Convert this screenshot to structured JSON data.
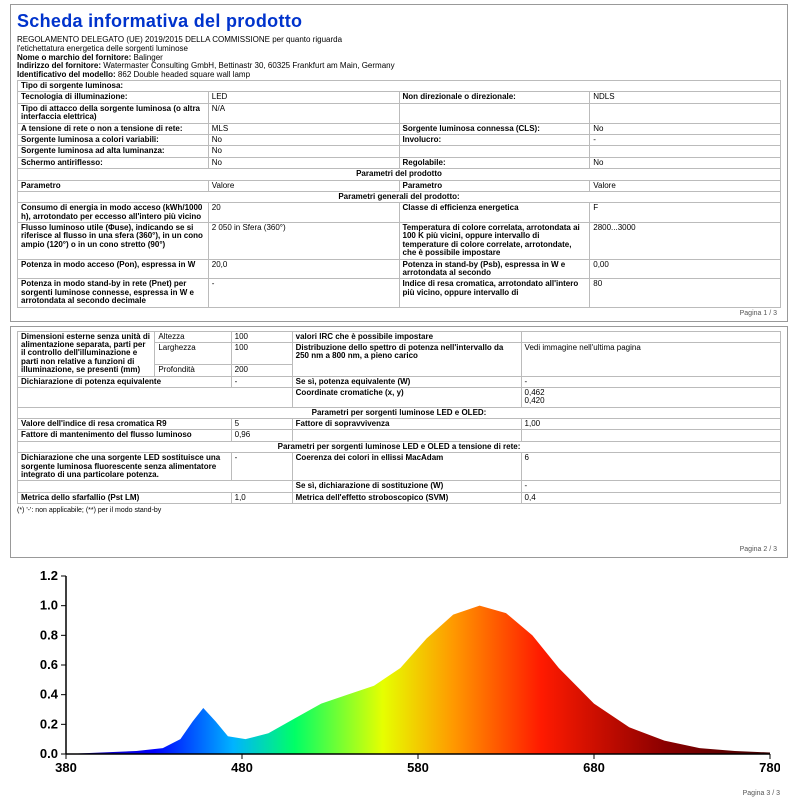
{
  "header": {
    "title": "Scheda informativa del prodotto",
    "reg_line1": "REGOLAMENTO DELEGATO (UE) 2019/2015 DELLA COMMISSIONE per quanto riguarda",
    "reg_line2": "l'etichettatura energetica delle sorgenti luminose",
    "supplier_lbl": "Nome o marchio del fornitore:",
    "supplier_val": "Balinger",
    "addr_lbl": "Indirizzo del fornitore:",
    "addr_val": "Watermaster Consulting GmbH, Bettinastr 30, 60325 Frankfurt am Main, Germany",
    "model_lbl": "Identificativo del modello:",
    "model_val": "862 Double headed square wall lamp"
  },
  "r": {
    "tipo_lbl": "Tipo di sorgente luminosa:",
    "tech_lbl": "Tecnologia di illuminazione:",
    "tech_val": "LED",
    "dir_lbl": "Non direzionale o direzionale:",
    "dir_val": "NDLS",
    "att_lbl": "Tipo di attacco della sorgente luminosa (o altra interfaccia elettrica)",
    "att_val": "N/A",
    "rete_lbl": "A tensione di rete o non a tensione di rete:",
    "rete_val": "MLS",
    "cls_lbl": "Sorgente luminosa connessa (CLS):",
    "cls_val": "No",
    "colori_lbl": "Sorgente luminosa a colori variabili:",
    "colori_val": "No",
    "inv_lbl": "Involucro:",
    "inv_val": "-",
    "alta_lbl": "Sorgente luminosa ad alta luminanza:",
    "alta_val": "No",
    "schermo_lbl": "Schermo antiriflesso:",
    "schermo_val": "No",
    "reg_lbl": "Regolabile:",
    "reg_val": "No",
    "param_sect": "Parametri del prodotto",
    "p_lbl": "Parametro",
    "v_lbl": "Valore",
    "gen_sect": "Parametri generali del prodotto:",
    "cons_lbl": "Consumo di energia in modo acceso (kWh/1000 h), arrotondato per eccesso all'intero più vicino",
    "cons_val": "20",
    "class_lbl": "Classe di efficienza energetica",
    "class_val": "F",
    "flux_lbl": "Flusso luminoso utile (Φuse), indicando se si riferisce al flusso in una sfera (360°), in un cono ampio (120°) o in un cono stretto (90°)",
    "flux_val": "2 050 in Sfera (360°)",
    "temp_lbl": "Temperatura di colore correlata, arrotondata ai 100 K più vicini, oppure intervallo di temperature di colore correlate, arrotondate, che è possibile impostare",
    "temp_val": "2800...3000",
    "pon_lbl": "Potenza in modo acceso (Pon), espressa in W",
    "pon_val": "20,0",
    "psb_lbl": "Potenza in stand-by (Psb), espressa in W e arrotondata al secondo",
    "psb_val": "0,00",
    "psb2_lbl": "Potenza in modo stand-by in rete (Pnet) per sorgenti luminose connesse, espressa in W e arrotondata al secondo decimale",
    "psb2_val": "-",
    "irc_lbl": "Indice di resa cromatica, arrotondato all'intero più vicino, oppure intervallo di",
    "irc_val": "80"
  },
  "p1": "Pagina 1 / 3",
  "r2": {
    "dim_lbl": "Dimensioni esterne senza unità di alimentazione separata, parti per il controllo dell'illuminazione e parti non relative a funzioni di illuminazione, se presenti (mm)",
    "alt_lbl": "Altezza",
    "alt_val": "100",
    "lar_lbl": "Larghezza",
    "lar_val": "100",
    "pro_lbl": "Profondità",
    "pro_val": "200",
    "irc2_lbl": "valori IRC che è possibile impostare",
    "spd_lbl": "Distribuzione dello spettro di potenza nell'intervallo da 250 nm a 800 nm, a pieno carico",
    "spd_val": "Vedi immagine nell'ultima pagina",
    "peq_lbl": "Dichiarazione di potenza equivalente",
    "peq_val": "-",
    "peq2_lbl": "Se sì, potenza equivalente (W)",
    "peq2_val": "-",
    "coord_lbl": "Coordinate cromatiche (x, y)",
    "coord_x": "0,462",
    "coord_y": "0,420",
    "led_sect": "Parametri per sorgenti luminose LED e OLED:",
    "r9_lbl": "Valore dell'indice di resa cromatica R9",
    "r9_val": "5",
    "surv_lbl": "Fattore di sopravvivenza",
    "surv_val": "1,00",
    "fm_lbl": "Fattore di mantenimento del flusso luminoso",
    "fm_val": "0,96",
    "ledrete_sect": "Parametri per sorgenti luminose LED e OLED a tensione di rete:",
    "fluor_lbl": "Dichiarazione che una sorgente LED sostituisce una sorgente luminosa fluorescente senza alimentatore integrato di una particolare potenza.",
    "fluor_val": "-",
    "mac_lbl": "Coerenza dei colori in ellissi MacAdam",
    "mac_val": "6",
    "mac2_lbl": "Se sì, dichiarazione di sostituzione (W)",
    "mac2_val": "-",
    "flick_lbl": "Metrica dello sfarfallio (Pst LM)",
    "flick_val": "1,0",
    "svm_lbl": "Metrica dell'effetto stroboscopico (SVM)",
    "svm_val": "0,4",
    "foot": "(*) '-': non applicabile; (**) per il modo stand-by"
  },
  "p2": "Pagina 2 / 3",
  "spectrum": {
    "xlim": [
      380,
      780
    ],
    "ylim": [
      0,
      1.2
    ],
    "xticks": [
      380,
      480,
      580,
      680,
      780
    ],
    "yticks": [
      0.0,
      0.2,
      0.4,
      0.6,
      0.8,
      1.0,
      1.2
    ],
    "curve": [
      [
        380,
        0.0
      ],
      [
        400,
        0.01
      ],
      [
        420,
        0.02
      ],
      [
        435,
        0.04
      ],
      [
        445,
        0.1
      ],
      [
        452,
        0.22
      ],
      [
        458,
        0.31
      ],
      [
        465,
        0.22
      ],
      [
        472,
        0.12
      ],
      [
        482,
        0.1
      ],
      [
        495,
        0.14
      ],
      [
        510,
        0.24
      ],
      [
        525,
        0.34
      ],
      [
        540,
        0.4
      ],
      [
        555,
        0.46
      ],
      [
        570,
        0.58
      ],
      [
        585,
        0.78
      ],
      [
        600,
        0.94
      ],
      [
        615,
        1.0
      ],
      [
        630,
        0.95
      ],
      [
        645,
        0.8
      ],
      [
        660,
        0.58
      ],
      [
        680,
        0.34
      ],
      [
        700,
        0.18
      ],
      [
        720,
        0.09
      ],
      [
        740,
        0.04
      ],
      [
        760,
        0.02
      ],
      [
        780,
        0.01
      ]
    ],
    "gradient_stops": [
      {
        "x": 380,
        "c": "#1a008c"
      },
      {
        "x": 430,
        "c": "#0000ff"
      },
      {
        "x": 475,
        "c": "#00b3ff"
      },
      {
        "x": 510,
        "c": "#00ff66"
      },
      {
        "x": 560,
        "c": "#e6ff00"
      },
      {
        "x": 600,
        "c": "#ff9900"
      },
      {
        "x": 650,
        "c": "#ff1a00"
      },
      {
        "x": 720,
        "c": "#8b0000"
      },
      {
        "x": 780,
        "c": "#400000"
      }
    ],
    "axis_color": "#000",
    "tick_fontsize": 13,
    "line_width": 1
  },
  "p3": "Pagina 3 / 3"
}
